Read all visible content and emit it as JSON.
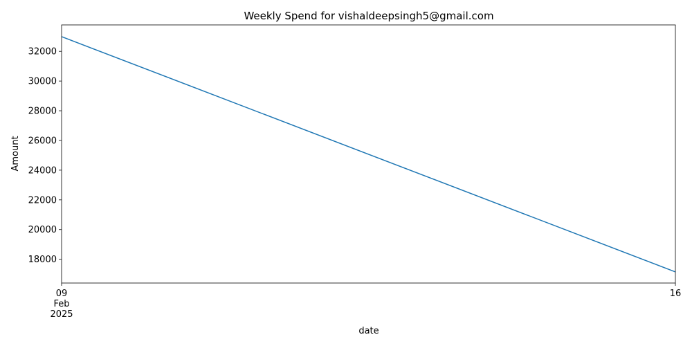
{
  "chart_data": {
    "type": "line",
    "title": "Weekly Spend for vishaldeepsingh5@gmail.com",
    "xlabel": "date",
    "ylabel": "Amount",
    "x": [
      "2025-02-09",
      "2025-02-16"
    ],
    "x_tick_labels": [
      {
        "lines": [
          "09",
          "Feb",
          "2025"
        ]
      },
      {
        "lines": [
          "16"
        ]
      }
    ],
    "series": [
      {
        "values": [
          32990,
          17150
        ],
        "color": "#1f77b4"
      }
    ],
    "ylim": [
      16400,
      33780
    ],
    "yticks": [
      18000,
      20000,
      22000,
      24000,
      26000,
      28000,
      30000,
      32000
    ],
    "grid": false,
    "legend": "none"
  }
}
